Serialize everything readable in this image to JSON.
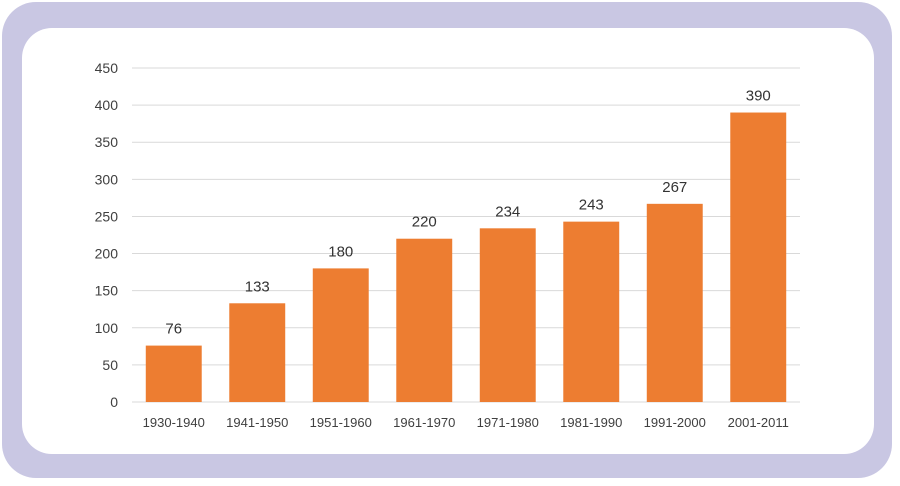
{
  "chart_data": {
    "type": "bar",
    "title": "",
    "xlabel": "",
    "ylabel": "",
    "categories": [
      "1930-1940",
      "1941-1950",
      "1951-1960",
      "1961-1970",
      "1971-1980",
      "1981-1990",
      "1991-2000",
      "2001-2011"
    ],
    "values": [
      76,
      133,
      180,
      220,
      234,
      243,
      267,
      390
    ],
    "data_labels": [
      "76",
      "133",
      "180",
      "220",
      "234",
      "243",
      "267",
      "390"
    ],
    "ylim": [
      0,
      450
    ],
    "yticks": [
      "0",
      "50",
      "100",
      "150",
      "200",
      "250",
      "300",
      "350",
      "400",
      "450"
    ],
    "grid": true,
    "legend": "none",
    "colors": {
      "bar": "#ed7d31",
      "frame": "#c9c7e3",
      "grid": "#d9d9d9"
    }
  }
}
